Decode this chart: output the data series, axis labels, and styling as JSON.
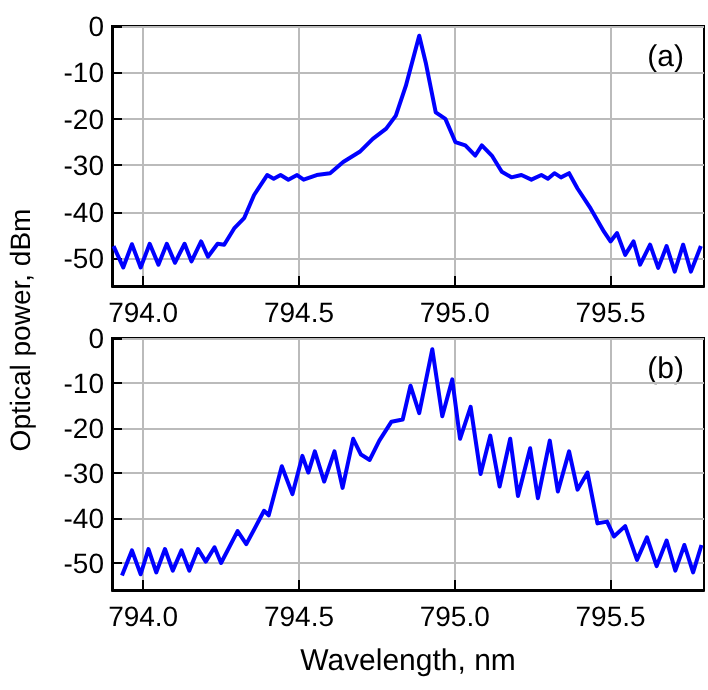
{
  "chart_data": [
    {
      "type": "line",
      "ylabel": "Optical power, dBm",
      "annotations": [
        "(a)"
      ],
      "grid": true,
      "marker": "none",
      "line_style": "solid",
      "xlim": [
        793.9,
        795.8
      ],
      "xticks": [
        {
          "value": 794,
          "label": "794.0"
        },
        {
          "value": 794.5,
          "label": "794.5"
        },
        {
          "value": 795,
          "label": "795.0"
        },
        {
          "value": 795.5,
          "label": "795.5"
        }
      ],
      "ylim": [
        -56,
        0
      ],
      "yticks": [
        -50,
        -40,
        -30,
        -20,
        -10,
        0
      ],
      "series": [
        {
          "color": "#0000ff",
          "x": [
            793.905,
            793.936,
            793.964,
            793.992,
            794.021,
            794.049,
            794.076,
            794.102,
            794.133,
            794.155,
            794.186,
            794.208,
            794.239,
            794.26,
            794.292,
            794.324,
            794.356,
            794.398,
            794.419,
            794.441,
            794.466,
            794.494,
            794.515,
            794.557,
            794.6,
            794.642,
            794.695,
            794.737,
            794.78,
            794.811,
            794.843,
            794.886,
            794.907,
            794.939,
            794.97,
            795.002,
            795.034,
            795.066,
            795.087,
            795.119,
            795.151,
            795.182,
            795.214,
            795.246,
            795.278,
            795.299,
            795.32,
            795.341,
            795.367,
            795.394,
            795.436,
            795.479,
            795.5,
            795.521,
            795.547,
            795.574,
            795.595,
            795.627,
            795.653,
            795.68,
            795.706,
            795.733,
            795.758,
            795.79
          ],
          "values": [
            -47.4,
            -52,
            -47,
            -52,
            -46.9,
            -51.4,
            -46.9,
            -51,
            -46.9,
            -50.7,
            -46.4,
            -49.7,
            -46.9,
            -47.1,
            -43.6,
            -41.4,
            -36.4,
            -32.1,
            -32.9,
            -32.1,
            -33.1,
            -32.1,
            -33.1,
            -32.1,
            -31.7,
            -29.3,
            -27.1,
            -24.3,
            -22.1,
            -19.3,
            -12.9,
            -2.1,
            -7.9,
            -18.6,
            -20,
            -25,
            -25.7,
            -27.9,
            -25.7,
            -27.9,
            -31.4,
            -32.6,
            -32.1,
            -33.1,
            -32.1,
            -32.9,
            -31.7,
            -32.6,
            -31.7,
            -35,
            -39.3,
            -44.3,
            -46.4,
            -44.6,
            -49.3,
            -46.4,
            -51.4,
            -47.1,
            -52.1,
            -47.4,
            -52.9,
            -47.1,
            -52.9,
            -47.4
          ]
        }
      ]
    },
    {
      "type": "line",
      "xlabel": "Wavelength, nm",
      "annotations": [
        "(b)"
      ],
      "grid": true,
      "marker": "none",
      "line_style": "solid",
      "xlim": [
        793.9,
        795.8
      ],
      "xticks": [
        {
          "value": 794,
          "label": "794.0"
        },
        {
          "value": 794.5,
          "label": "794.5"
        },
        {
          "value": 795,
          "label": "795.0"
        },
        {
          "value": 795.5,
          "label": "795.5"
        }
      ],
      "ylim": [
        -56,
        0
      ],
      "yticks": [
        -50,
        -40,
        -30,
        -20,
        -10,
        0
      ],
      "series": [
        {
          "color": "#0000ff",
          "x": [
            793.932,
            793.964,
            793.992,
            794.017,
            794.042,
            794.07,
            794.095,
            794.123,
            794.148,
            794.176,
            794.201,
            794.229,
            794.25,
            794.303,
            794.331,
            794.388,
            794.403,
            794.445,
            794.479,
            794.511,
            794.53,
            794.551,
            794.581,
            794.614,
            794.64,
            794.674,
            794.699,
            794.727,
            794.758,
            794.797,
            794.833,
            794.858,
            794.886,
            794.928,
            794.96,
            794.992,
            795.017,
            795.051,
            795.083,
            795.114,
            795.144,
            795.178,
            795.203,
            795.242,
            795.267,
            795.305,
            795.331,
            795.367,
            795.394,
            795.426,
            795.458,
            795.489,
            795.511,
            795.547,
            795.585,
            795.617,
            795.648,
            795.68,
            795.708,
            795.737,
            795.765,
            795.792
          ],
          "values": [
            -52.8,
            -47.2,
            -52.5,
            -46.9,
            -52.1,
            -46.9,
            -51.7,
            -47.2,
            -51.7,
            -46.9,
            -49.7,
            -46.5,
            -50,
            -42.9,
            -45.8,
            -38.4,
            -39.4,
            -28.5,
            -34.7,
            -26.2,
            -29.9,
            -25.2,
            -31.9,
            -25.2,
            -33.3,
            -22.4,
            -25.9,
            -27.1,
            -22.8,
            -18.6,
            -18.1,
            -10.6,
            -16.7,
            -2.5,
            -17.4,
            -9.2,
            -22.4,
            -15.3,
            -30.2,
            -21.7,
            -33,
            -22.4,
            -35.1,
            -24.5,
            -35.6,
            -22.8,
            -34.1,
            -25.2,
            -33.7,
            -29.9,
            -41.2,
            -40.8,
            -44.1,
            -41.8,
            -49.3,
            -44.3,
            -50.7,
            -45,
            -51.7,
            -46,
            -52.1,
            -46
          ]
        }
      ]
    }
  ]
}
